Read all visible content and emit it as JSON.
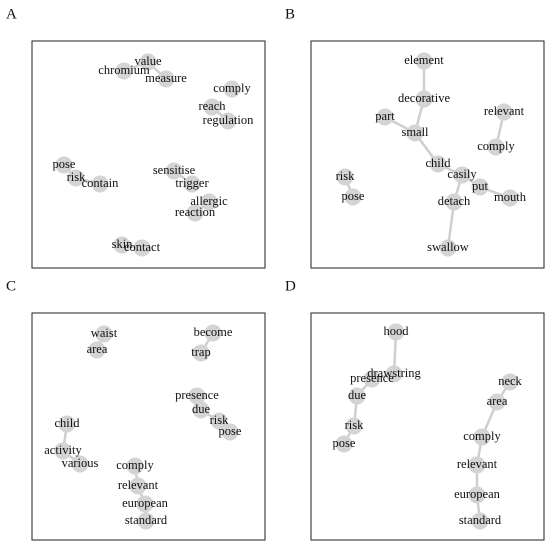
{
  "panels": [
    {
      "label": "A",
      "nodes": [
        {
          "label": "value"
        },
        {
          "label": "chromium"
        },
        {
          "label": "measure"
        },
        {
          "label": "comply"
        },
        {
          "label": "reach"
        },
        {
          "label": "regulation"
        },
        {
          "label": "pose"
        },
        {
          "label": "risk"
        },
        {
          "label": "contain"
        },
        {
          "label": "sensitise"
        },
        {
          "label": "trigger"
        },
        {
          "label": "allergic"
        },
        {
          "label": "reaction"
        },
        {
          "label": "skin"
        },
        {
          "label": "contact"
        }
      ]
    },
    {
      "label": "B",
      "nodes": [
        {
          "label": "element"
        },
        {
          "label": "decorative"
        },
        {
          "label": "part"
        },
        {
          "label": "small"
        },
        {
          "label": "relevant"
        },
        {
          "label": "comply"
        },
        {
          "label": "child"
        },
        {
          "label": "casily"
        },
        {
          "label": "risk"
        },
        {
          "label": "pose"
        },
        {
          "label": "put"
        },
        {
          "label": "mouth"
        },
        {
          "label": "detach"
        },
        {
          "label": "swallow"
        }
      ]
    },
    {
      "label": "C",
      "nodes": [
        {
          "label": "waist"
        },
        {
          "label": "area"
        },
        {
          "label": "become"
        },
        {
          "label": "trap"
        },
        {
          "label": "presence"
        },
        {
          "label": "due"
        },
        {
          "label": "risk"
        },
        {
          "label": "pose"
        },
        {
          "label": "child"
        },
        {
          "label": "activity"
        },
        {
          "label": "various"
        },
        {
          "label": "comply"
        },
        {
          "label": "relevant"
        },
        {
          "label": "european"
        },
        {
          "label": "standard"
        }
      ]
    },
    {
      "label": "D",
      "nodes": [
        {
          "label": "hood"
        },
        {
          "label": "drawstring"
        },
        {
          "label": "presence"
        },
        {
          "label": "due"
        },
        {
          "label": "risk"
        },
        {
          "label": "pose"
        },
        {
          "label": "neck"
        },
        {
          "label": "area"
        },
        {
          "label": "comply"
        },
        {
          "label": "relevant"
        },
        {
          "label": "european"
        },
        {
          "label": "standard"
        }
      ]
    }
  ]
}
